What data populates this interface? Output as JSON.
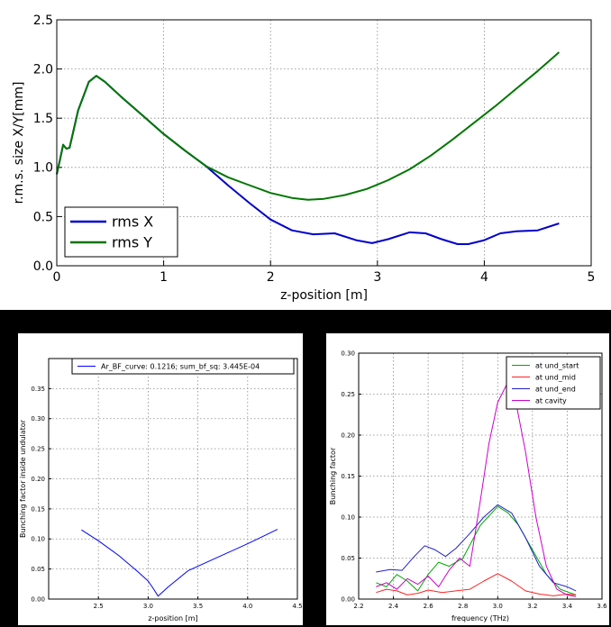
{
  "chart_data": [
    {
      "type": "line",
      "title": "",
      "xlabel": "z-position [m]",
      "ylabel": "r.m.s. size X/Y[mm]",
      "xlim": [
        0,
        5
      ],
      "ylim": [
        0,
        2.5
      ],
      "xticks": [
        "0",
        "1",
        "2",
        "3",
        "4",
        "5"
      ],
      "yticks": [
        "0.0",
        "0.5",
        "1.0",
        "1.5",
        "2.0",
        "2.5"
      ],
      "grid": true,
      "legend_position": "lower-left",
      "series": [
        {
          "name": "rms X",
          "color": "#0000cc",
          "x": [
            0.0,
            0.03,
            0.06,
            0.09,
            0.12,
            0.2,
            0.3,
            0.37,
            0.45,
            0.6,
            0.8,
            1.0,
            1.2,
            1.4,
            1.6,
            1.8,
            2.0,
            2.2,
            2.4,
            2.6,
            2.8,
            2.95,
            3.1,
            3.3,
            3.45,
            3.6,
            3.75,
            3.85,
            4.0,
            4.15,
            4.3,
            4.5,
            4.7
          ],
          "y": [
            0.93,
            1.08,
            1.23,
            1.19,
            1.2,
            1.58,
            1.87,
            1.93,
            1.87,
            1.72,
            1.53,
            1.34,
            1.17,
            1.01,
            0.82,
            0.64,
            0.47,
            0.36,
            0.32,
            0.33,
            0.26,
            0.23,
            0.27,
            0.34,
            0.33,
            0.27,
            0.22,
            0.22,
            0.26,
            0.33,
            0.35,
            0.36,
            0.43
          ]
        },
        {
          "name": "rms Y",
          "color": "#007700",
          "x": [
            0.0,
            0.03,
            0.06,
            0.09,
            0.12,
            0.2,
            0.3,
            0.37,
            0.45,
            0.6,
            0.8,
            1.0,
            1.2,
            1.4,
            1.6,
            1.8,
            2.0,
            2.2,
            2.35,
            2.5,
            2.7,
            2.9,
            3.1,
            3.3,
            3.5,
            3.7,
            3.9,
            4.1,
            4.3,
            4.5,
            4.7
          ],
          "y": [
            0.93,
            1.08,
            1.23,
            1.19,
            1.2,
            1.58,
            1.87,
            1.93,
            1.87,
            1.72,
            1.53,
            1.34,
            1.17,
            1.01,
            0.9,
            0.82,
            0.74,
            0.69,
            0.67,
            0.68,
            0.72,
            0.78,
            0.87,
            0.98,
            1.12,
            1.28,
            1.45,
            1.62,
            1.8,
            1.98,
            2.17
          ]
        }
      ]
    },
    {
      "type": "line",
      "title": "",
      "xlabel": "z-position [m]",
      "ylabel": "Bunching factor inside undulator",
      "xlim": [
        2.0,
        4.5
      ],
      "ylim": [
        0,
        0.4
      ],
      "xticks": [
        "2.5",
        "3.0",
        "3.5",
        "4.0",
        "4.5"
      ],
      "yticks": [
        "0.00",
        "0.05",
        "0.10",
        "0.15",
        "0.20",
        "0.25",
        "0.30",
        "0.35"
      ],
      "grid": true,
      "legend_position": "top",
      "series": [
        {
          "name": "Ar_BF_curve: 0.1216; sum_bf_sq: 3.445E-04",
          "color": "#0000ff",
          "x": [
            2.33,
            2.5,
            2.7,
            2.9,
            3.0,
            3.05,
            3.1,
            3.2,
            3.4,
            3.6,
            3.8,
            4.0,
            4.2,
            4.3
          ],
          "y": [
            0.115,
            0.097,
            0.073,
            0.045,
            0.03,
            0.018,
            0.005,
            0.02,
            0.047,
            0.062,
            0.077,
            0.092,
            0.108,
            0.116
          ]
        }
      ]
    },
    {
      "type": "line",
      "title": "",
      "xlabel": "frequency (THz)",
      "ylabel": "Bunching factor",
      "xlim": [
        2.2,
        3.6
      ],
      "ylim": [
        0,
        0.3
      ],
      "xticks": [
        "2.2",
        "2.4",
        "2.6",
        "2.8",
        "3.0",
        "3.2",
        "3.4",
        "3.6"
      ],
      "yticks": [
        "0.00",
        "0.05",
        "0.10",
        "0.15",
        "0.20",
        "0.25",
        "0.30"
      ],
      "grid": true,
      "legend_position": "top-right",
      "series": [
        {
          "name": "at und_start",
          "color": "#00aa00",
          "x": [
            2.3,
            2.36,
            2.42,
            2.48,
            2.54,
            2.6,
            2.66,
            2.72,
            2.8,
            2.9,
            3.0,
            3.06,
            3.12,
            3.2,
            3.28,
            3.36,
            3.45
          ],
          "y": [
            0.02,
            0.015,
            0.03,
            0.022,
            0.01,
            0.03,
            0.045,
            0.04,
            0.05,
            0.09,
            0.113,
            0.105,
            0.09,
            0.06,
            0.03,
            0.012,
            0.005
          ]
        },
        {
          "name": "at und_mid",
          "color": "#ff2222",
          "x": [
            2.3,
            2.36,
            2.42,
            2.48,
            2.54,
            2.6,
            2.68,
            2.76,
            2.84,
            2.92,
            3.0,
            3.08,
            3.16,
            3.24,
            3.32,
            3.4,
            3.45
          ],
          "y": [
            0.008,
            0.012,
            0.01,
            0.005,
            0.007,
            0.011,
            0.008,
            0.01,
            0.012,
            0.022,
            0.031,
            0.022,
            0.01,
            0.006,
            0.004,
            0.006,
            0.005
          ]
        },
        {
          "name": "at und_end",
          "color": "#2222cc",
          "x": [
            2.3,
            2.38,
            2.45,
            2.52,
            2.58,
            2.64,
            2.7,
            2.76,
            2.84,
            2.92,
            3.0,
            3.08,
            3.16,
            3.24,
            3.32,
            3.4,
            3.45
          ],
          "y": [
            0.033,
            0.036,
            0.035,
            0.052,
            0.065,
            0.06,
            0.052,
            0.062,
            0.08,
            0.1,
            0.115,
            0.105,
            0.075,
            0.04,
            0.02,
            0.015,
            0.01
          ]
        },
        {
          "name": "at cavity",
          "color": "#cc00cc",
          "x": [
            2.3,
            2.36,
            2.42,
            2.48,
            2.54,
            2.6,
            2.66,
            2.72,
            2.78,
            2.84,
            2.9,
            2.95,
            3.0,
            3.05,
            3.1,
            3.16,
            3.22,
            3.28,
            3.34,
            3.4,
            3.45
          ],
          "y": [
            0.015,
            0.02,
            0.012,
            0.025,
            0.018,
            0.028,
            0.015,
            0.035,
            0.05,
            0.04,
            0.12,
            0.19,
            0.24,
            0.261,
            0.245,
            0.18,
            0.1,
            0.04,
            0.012,
            0.005,
            0.003
          ]
        }
      ]
    }
  ]
}
